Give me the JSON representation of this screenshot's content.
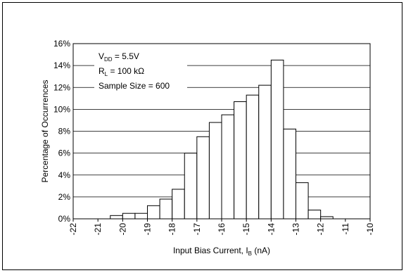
{
  "chart_data": {
    "type": "bar",
    "title": "",
    "xlabel": "Input Bias Current, I",
    "xlabel_sub": "B",
    "xlabel_unit": " (nA)",
    "ylabel": "Percentage of Occurrences",
    "xlim": [
      -22,
      -10
    ],
    "ylim": [
      0,
      16
    ],
    "grid": true,
    "x_ticks": [
      "-22",
      "-21",
      "-20",
      "-19",
      "-18",
      "-17",
      "-16",
      "-15",
      "-14",
      "-13",
      "-12",
      "-11",
      "-10"
    ],
    "y_ticks": [
      "0%",
      "2%",
      "4%",
      "6%",
      "8%",
      "10%",
      "12%",
      "14%",
      "16%"
    ],
    "bin_width": 0.5,
    "bin_starts": [
      -22,
      -21.5,
      -21,
      -20.5,
      -20,
      -19.5,
      -19,
      -18.5,
      -18,
      -17.5,
      -17,
      -16.5,
      -16,
      -15.5,
      -15,
      -14.5,
      -14,
      -13.5,
      -13,
      -12.5,
      -12,
      -11.5,
      -11,
      -10.5
    ],
    "values": [
      0,
      0,
      0,
      0.3,
      0.5,
      0.5,
      1.2,
      1.8,
      2.7,
      6.0,
      7.5,
      8.8,
      9.5,
      10.7,
      11.3,
      12.2,
      14.5,
      8.2,
      3.3,
      0.8,
      0.2,
      0,
      0,
      0
    ],
    "annotation": {
      "line1": {
        "main": "V",
        "sub": "DD",
        "rest": " = 5.5V"
      },
      "line2": {
        "main": "R",
        "sub": "L",
        "rest": " = 100 kΩ"
      },
      "line3": "Sample Size = 600"
    }
  }
}
